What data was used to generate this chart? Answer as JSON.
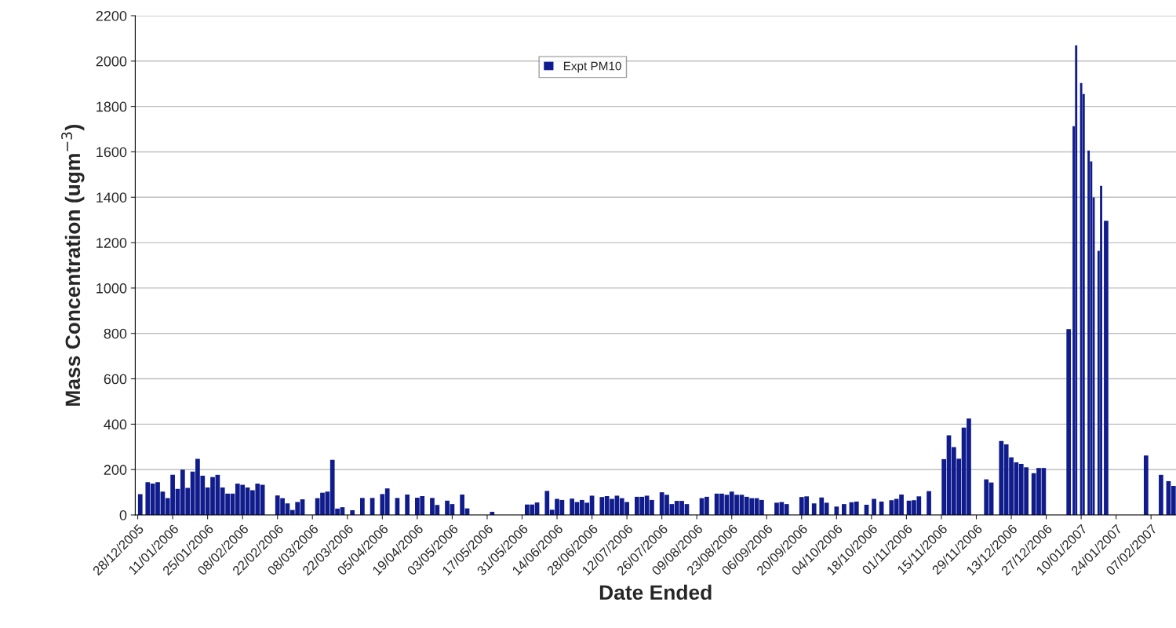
{
  "chart_data": {
    "type": "bar",
    "xlabel": "Date Ended",
    "ylabel": "Mass Concentration (ugm$^{−3}$)",
    "x": [
      "2005-12-29",
      "2006-01-01",
      "2006-01-03",
      "2006-01-05",
      "2006-01-07",
      "2006-01-09",
      "2006-01-11",
      "2006-01-13",
      "2006-01-15",
      "2006-01-17",
      "2006-01-19",
      "2006-01-21",
      "2006-01-23",
      "2006-01-25",
      "2006-01-27",
      "2006-01-29",
      "2006-01-31",
      "2006-02-02",
      "2006-02-04",
      "2006-02-06",
      "2006-02-08",
      "2006-02-10",
      "2006-02-12",
      "2006-02-14",
      "2006-02-16",
      "2006-02-22",
      "2006-02-24",
      "2006-02-26",
      "2006-02-28",
      "2006-03-02",
      "2006-03-04",
      "2006-03-10",
      "2006-03-12",
      "2006-03-14",
      "2006-03-16",
      "2006-03-18",
      "2006-03-20",
      "2006-03-24",
      "2006-03-28",
      "2006-04-01",
      "2006-04-05",
      "2006-04-07",
      "2006-04-11",
      "2006-04-15",
      "2006-04-19",
      "2006-04-21",
      "2006-04-25",
      "2006-04-27",
      "2006-05-01",
      "2006-05-03",
      "2006-05-07",
      "2006-05-09",
      "2006-05-19",
      "2006-06-02",
      "2006-06-04",
      "2006-06-06",
      "2006-06-10",
      "2006-06-12",
      "2006-06-14",
      "2006-06-16",
      "2006-06-20",
      "2006-06-22",
      "2006-06-24",
      "2006-06-26",
      "2006-06-28",
      "2006-07-02",
      "2006-07-04",
      "2006-07-06",
      "2006-07-08",
      "2006-07-10",
      "2006-07-12",
      "2006-07-16",
      "2006-07-18",
      "2006-07-20",
      "2006-07-22",
      "2006-07-26",
      "2006-07-28",
      "2006-07-30",
      "2006-08-01",
      "2006-08-03",
      "2006-08-05",
      "2006-08-11",
      "2006-08-13",
      "2006-08-17",
      "2006-08-19",
      "2006-08-21",
      "2006-08-23",
      "2006-08-25",
      "2006-08-27",
      "2006-08-29",
      "2006-08-31",
      "2006-09-02",
      "2006-09-04",
      "2006-09-10",
      "2006-09-12",
      "2006-09-14",
      "2006-09-20",
      "2006-09-22",
      "2006-09-25",
      "2006-09-28",
      "2006-09-30",
      "2006-10-04",
      "2006-10-07",
      "2006-10-10",
      "2006-10-12",
      "2006-10-16",
      "2006-10-19",
      "2006-10-22",
      "2006-10-26",
      "2006-10-28",
      "2006-10-30",
      "2006-11-02",
      "2006-11-04",
      "2006-11-06",
      "2006-11-10",
      "2006-11-16",
      "2006-11-18",
      "2006-11-20",
      "2006-11-22",
      "2006-11-24",
      "2006-11-26",
      "2006-12-03",
      "2006-12-05",
      "2006-12-09",
      "2006-12-11",
      "2006-12-13",
      "2006-12-15",
      "2006-12-17",
      "2006-12-19",
      "2006-12-22",
      "2006-12-24",
      "2006-12-26",
      "2007-01-05",
      "2007-01-07",
      "2007-01-08",
      "2007-01-10",
      "2007-01-11",
      "2007-01-13",
      "2007-01-14",
      "2007-01-15",
      "2007-01-17",
      "2007-01-18",
      "2007-01-20",
      "2007-02-05",
      "2007-02-11",
      "2007-02-14",
      "2007-02-16"
    ],
    "series": [
      {
        "name": "Expt PM10",
        "color": "#101c8c",
        "values": [
          92,
          144,
          138,
          144,
          103,
          74,
          177,
          115,
          200,
          119,
          191,
          247,
          173,
          121,
          167,
          177,
          121,
          94,
          94,
          138,
          133,
          121,
          109,
          138,
          133,
          86,
          74,
          51,
          22,
          57,
          69,
          74,
          98,
          103,
          243,
          28,
          34,
          21,
          75,
          75,
          92,
          117,
          75,
          90,
          76,
          83,
          75,
          44,
          63,
          48,
          90,
          29,
          14,
          46,
          46,
          55,
          106,
          23,
          71,
          66,
          72,
          57,
          66,
          54,
          85,
          79,
          83,
          71,
          85,
          74,
          57,
          80,
          80,
          85,
          66,
          100,
          89,
          48,
          62,
          62,
          48,
          74,
          80,
          94,
          94,
          89,
          103,
          89,
          89,
          80,
          74,
          74,
          66,
          54,
          57,
          48,
          79,
          82,
          51,
          77,
          54,
          37,
          48,
          56,
          59,
          45,
          71,
          59,
          65,
          71,
          90,
          63,
          65,
          82,
          105,
          246,
          351,
          299,
          248,
          385,
          425,
          157,
          143,
          326,
          311,
          254,
          232,
          225,
          210,
          184,
          207,
          207,
          819,
          1713,
          2069,
          1903,
          1855,
          1606,
          1558,
          1399,
          1164,
          1450,
          1296,
          262,
          177,
          149,
          128
        ]
      }
    ],
    "xlim": [
      "2005-12-27",
      "2007-02-17"
    ],
    "xticks": [
      {
        "value": "2005-12-28",
        "label": "28/12/2005"
      },
      {
        "value": "2006-01-11",
        "label": "11/01/2006"
      },
      {
        "value": "2006-01-25",
        "label": "25/01/2006"
      },
      {
        "value": "2006-02-08",
        "label": "08/02/2006"
      },
      {
        "value": "2006-02-22",
        "label": "22/02/2006"
      },
      {
        "value": "2006-03-08",
        "label": "08/03/2006"
      },
      {
        "value": "2006-03-22",
        "label": "22/03/2006"
      },
      {
        "value": "2006-04-05",
        "label": "05/04/2006"
      },
      {
        "value": "2006-04-19",
        "label": "19/04/2006"
      },
      {
        "value": "2006-05-03",
        "label": "03/05/2006"
      },
      {
        "value": "2006-05-17",
        "label": "17/05/2006"
      },
      {
        "value": "2006-05-31",
        "label": "31/05/2006"
      },
      {
        "value": "2006-06-14",
        "label": "14/06/2006"
      },
      {
        "value": "2006-06-28",
        "label": "28/06/2006"
      },
      {
        "value": "2006-07-12",
        "label": "12/07/2006"
      },
      {
        "value": "2006-07-26",
        "label": "26/07/2006"
      },
      {
        "value": "2006-08-09",
        "label": "09/08/2006"
      },
      {
        "value": "2006-08-23",
        "label": "23/08/2006"
      },
      {
        "value": "2006-09-06",
        "label": "06/09/2006"
      },
      {
        "value": "2006-09-20",
        "label": "20/09/2006"
      },
      {
        "value": "2006-10-04",
        "label": "04/10/2006"
      },
      {
        "value": "2006-10-18",
        "label": "18/10/2006"
      },
      {
        "value": "2006-11-01",
        "label": "01/11/2006"
      },
      {
        "value": "2006-11-15",
        "label": "15/11/2006"
      },
      {
        "value": "2006-11-29",
        "label": "29/11/2006"
      },
      {
        "value": "2006-12-13",
        "label": "13/12/2006"
      },
      {
        "value": "2006-12-27",
        "label": "27/12/2006"
      },
      {
        "value": "2007-01-10",
        "label": "10/01/2007"
      },
      {
        "value": "2007-01-24",
        "label": "24/01/2007"
      },
      {
        "value": "2007-02-07",
        "label": "07/02/2007"
      }
    ],
    "ylim": [
      0,
      2200
    ],
    "yticks": [
      0,
      200,
      400,
      600,
      800,
      1000,
      1200,
      1400,
      1600,
      1800,
      2000,
      2200
    ],
    "grid": "y",
    "legend": "top"
  }
}
